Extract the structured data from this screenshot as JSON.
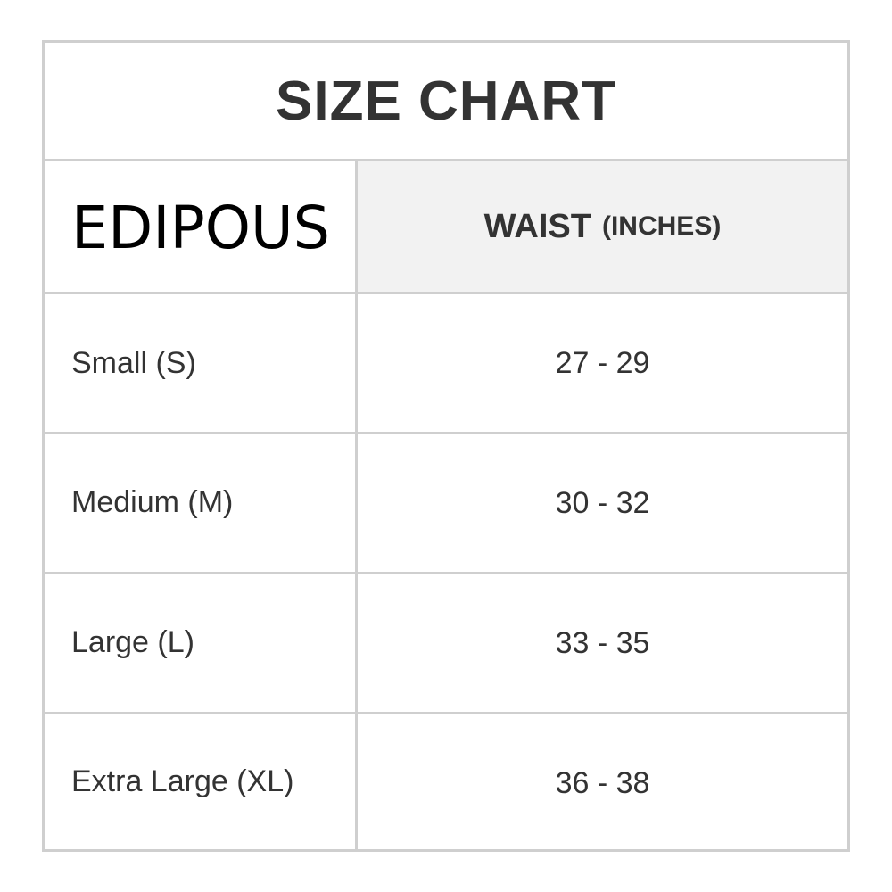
{
  "title": "SIZE CHART",
  "brand": "EDIPOUS",
  "header": {
    "waist": "WAIST",
    "unit": "(INCHES)"
  },
  "rows": [
    {
      "size": "Small (S)",
      "waist": "27 - 29"
    },
    {
      "size": "Medium (M)",
      "waist": "30 - 32"
    },
    {
      "size": "Large (L)",
      "waist": "33 - 35"
    },
    {
      "size": "Extra Large (XL)",
      "waist": "36 - 38"
    }
  ],
  "colors": {
    "border": "#cfcfcf",
    "header_bg": "#f2f2f2",
    "text": "#333333"
  }
}
